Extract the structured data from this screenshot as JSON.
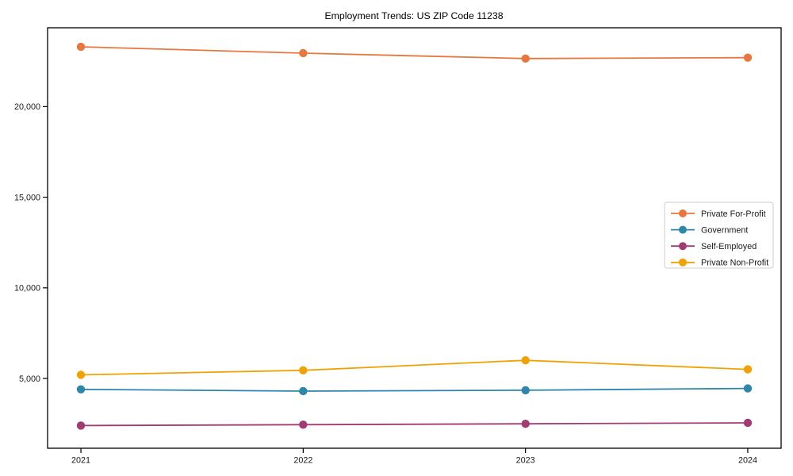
{
  "chart_data": {
    "type": "line",
    "title": "Employment Trends: US ZIP Code 11238",
    "xlabel": "",
    "ylabel": "",
    "categories": [
      "2021",
      "2022",
      "2023",
      "2024"
    ],
    "series": [
      {
        "name": "Private For-Profit",
        "color": "#E8773D",
        "values": [
          23300,
          22950,
          22650,
          22700
        ]
      },
      {
        "name": "Government",
        "color": "#2E86AB",
        "values": [
          4400,
          4300,
          4350,
          4450
        ]
      },
      {
        "name": "Self-Employed",
        "color": "#A23B72",
        "values": [
          2400,
          2450,
          2500,
          2550
        ]
      },
      {
        "name": "Private Non-Profit",
        "color": "#F0A202",
        "values": [
          5200,
          5450,
          6000,
          5500
        ]
      }
    ],
    "yticks": [
      5000,
      10000,
      15000,
      20000
    ],
    "ytick_labels": [
      "5,000",
      "10,000",
      "15,000",
      "20,000"
    ],
    "ylim": [
      1150,
      24350
    ],
    "grid": false,
    "marker": "circle",
    "legend_position": "center-right",
    "axis_color": "#000000",
    "background_color": "#ffffff"
  }
}
